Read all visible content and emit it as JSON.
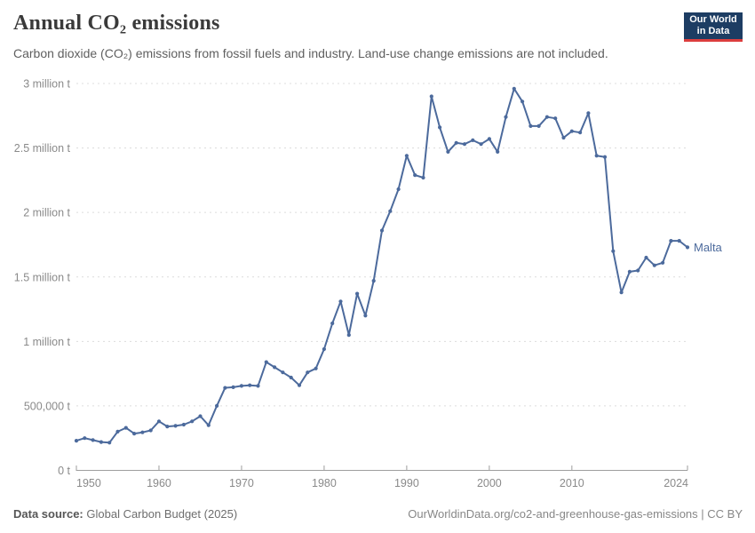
{
  "header": {
    "title": "Annual CO₂ emissions",
    "subtitle": "Carbon dioxide (CO₂) emissions from fossil fuels and industry. Land-use change emissions are not included."
  },
  "logo": {
    "line1": "Our World",
    "line2": "in Data",
    "bg": "#1d3d63",
    "accent": "#dc3e3e"
  },
  "footer": {
    "source_label": "Data source:",
    "source_value": "Global Carbon Budget (2025)",
    "right": "OurWorldinData.org/co2-and-greenhouse-gas-emissions | CC BY"
  },
  "chart_data": {
    "type": "line",
    "title": "Annual CO₂ emissions",
    "unit": "t",
    "xlim": [
      1950,
      2024
    ],
    "ylim": [
      0,
      3000000
    ],
    "grid": "horizontal-dashed",
    "legend_position": "end-of-line-label",
    "colors": {
      "line": "#4C6A9C",
      "grid": "#dcdcdc",
      "axis": "#9e9e9e",
      "tick_text": "#8a8a8a"
    },
    "y_ticks": [
      {
        "value": 0,
        "label": "0 t"
      },
      {
        "value": 500000,
        "label": "500,000 t"
      },
      {
        "value": 1000000,
        "label": "1 million t"
      },
      {
        "value": 1500000,
        "label": "1.5 million t"
      },
      {
        "value": 2000000,
        "label": "2 million t"
      },
      {
        "value": 2500000,
        "label": "2.5 million t"
      },
      {
        "value": 3000000,
        "label": "3 million t"
      }
    ],
    "x_ticks": [
      1950,
      1960,
      1970,
      1980,
      1990,
      2000,
      2010,
      2024
    ],
    "series": [
      {
        "name": "Malta",
        "color": "#4C6A9C",
        "points": [
          [
            1950,
            230000
          ],
          [
            1951,
            250000
          ],
          [
            1952,
            235000
          ],
          [
            1953,
            220000
          ],
          [
            1954,
            215000
          ],
          [
            1955,
            300000
          ],
          [
            1956,
            330000
          ],
          [
            1957,
            285000
          ],
          [
            1958,
            295000
          ],
          [
            1959,
            310000
          ],
          [
            1960,
            380000
          ],
          [
            1961,
            340000
          ],
          [
            1962,
            345000
          ],
          [
            1963,
            355000
          ],
          [
            1964,
            380000
          ],
          [
            1965,
            420000
          ],
          [
            1966,
            350000
          ],
          [
            1967,
            500000
          ],
          [
            1968,
            640000
          ],
          [
            1969,
            645000
          ],
          [
            1970,
            655000
          ],
          [
            1971,
            660000
          ],
          [
            1972,
            655000
          ],
          [
            1973,
            840000
          ],
          [
            1974,
            800000
          ],
          [
            1975,
            760000
          ],
          [
            1976,
            720000
          ],
          [
            1977,
            660000
          ],
          [
            1978,
            760000
          ],
          [
            1979,
            790000
          ],
          [
            1980,
            940000
          ],
          [
            1981,
            1140000
          ],
          [
            1982,
            1310000
          ],
          [
            1983,
            1050000
          ],
          [
            1984,
            1370000
          ],
          [
            1985,
            1200000
          ],
          [
            1986,
            1470000
          ],
          [
            1987,
            1860000
          ],
          [
            1988,
            2010000
          ],
          [
            1989,
            2180000
          ],
          [
            1990,
            2440000
          ],
          [
            1991,
            2290000
          ],
          [
            1992,
            2270000
          ],
          [
            1993,
            2900000
          ],
          [
            1994,
            2660000
          ],
          [
            1995,
            2470000
          ],
          [
            1996,
            2540000
          ],
          [
            1997,
            2530000
          ],
          [
            1998,
            2560000
          ],
          [
            1999,
            2530000
          ],
          [
            2000,
            2570000
          ],
          [
            2001,
            2470000
          ],
          [
            2002,
            2740000
          ],
          [
            2003,
            2960000
          ],
          [
            2004,
            2860000
          ],
          [
            2005,
            2670000
          ],
          [
            2006,
            2670000
          ],
          [
            2007,
            2740000
          ],
          [
            2008,
            2730000
          ],
          [
            2009,
            2580000
          ],
          [
            2010,
            2630000
          ],
          [
            2011,
            2620000
          ],
          [
            2012,
            2770000
          ],
          [
            2013,
            2440000
          ],
          [
            2014,
            2430000
          ],
          [
            2015,
            1700000
          ],
          [
            2016,
            1380000
          ],
          [
            2017,
            1540000
          ],
          [
            2018,
            1550000
          ],
          [
            2019,
            1650000
          ],
          [
            2020,
            1590000
          ],
          [
            2021,
            1610000
          ],
          [
            2022,
            1780000
          ],
          [
            2023,
            1780000
          ],
          [
            2024,
            1730000
          ]
        ]
      }
    ]
  }
}
